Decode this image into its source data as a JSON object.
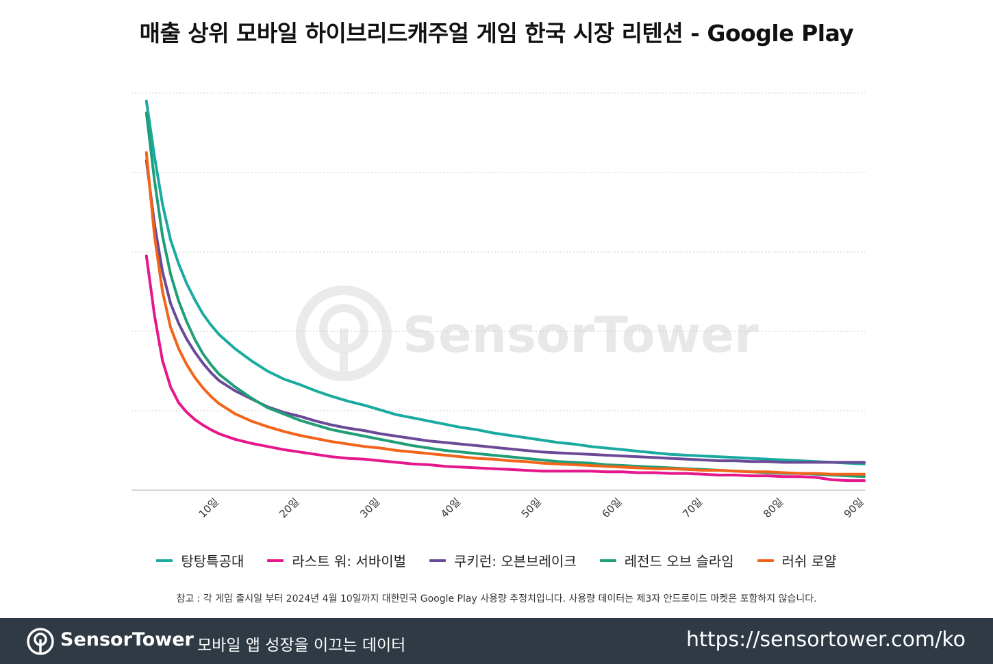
{
  "chart_data": {
    "type": "line",
    "title": "매출 상위 모바일 하이브리드캐주얼 게임 한국 시장 리텐션 - Google Play",
    "xlabel": "",
    "ylabel": "",
    "x_tick_labels": [
      "10일",
      "20일",
      "30일",
      "40일",
      "50일",
      "60일",
      "70일",
      "80일",
      "90일"
    ],
    "x_ticks": [
      10,
      20,
      30,
      40,
      50,
      60,
      70,
      80,
      90
    ],
    "xlim": [
      0,
      90
    ],
    "ylim": [
      0,
      5
    ],
    "grid": "horizontal-dotted",
    "legend_position": "bottom",
    "series": [
      {
        "name": "탕탕특공대",
        "color": "#19aaa0",
        "x": [
          1,
          2,
          3,
          4,
          5,
          6,
          7,
          8,
          9,
          10,
          12,
          14,
          16,
          18,
          20,
          22,
          24,
          26,
          28,
          30,
          32,
          34,
          36,
          38,
          40,
          42,
          44,
          46,
          48,
          50,
          52,
          54,
          56,
          58,
          60,
          62,
          64,
          66,
          68,
          70,
          72,
          74,
          76,
          78,
          80,
          82,
          84,
          86,
          88,
          90
        ],
        "y": [
          4.9,
          4.2,
          3.6,
          3.15,
          2.85,
          2.6,
          2.4,
          2.22,
          2.08,
          1.96,
          1.78,
          1.63,
          1.5,
          1.4,
          1.33,
          1.25,
          1.18,
          1.12,
          1.07,
          1.01,
          0.95,
          0.91,
          0.87,
          0.83,
          0.79,
          0.76,
          0.72,
          0.69,
          0.66,
          0.63,
          0.6,
          0.58,
          0.55,
          0.53,
          0.51,
          0.49,
          0.47,
          0.45,
          0.44,
          0.43,
          0.42,
          0.41,
          0.4,
          0.39,
          0.38,
          0.37,
          0.36,
          0.35,
          0.34,
          0.33
        ]
      },
      {
        "name": "라스트 워: 서바이벌",
        "color": "#e6168c",
        "x": [
          1,
          2,
          3,
          4,
          5,
          6,
          7,
          8,
          9,
          10,
          12,
          14,
          16,
          18,
          20,
          22,
          24,
          26,
          28,
          30,
          32,
          34,
          36,
          38,
          40,
          42,
          44,
          46,
          48,
          50,
          52,
          54,
          56,
          58,
          60,
          62,
          64,
          66,
          68,
          70,
          72,
          74,
          76,
          78,
          80,
          82,
          84,
          86,
          88,
          90
        ],
        "y": [
          2.95,
          2.2,
          1.63,
          1.3,
          1.1,
          0.98,
          0.89,
          0.82,
          0.76,
          0.71,
          0.64,
          0.59,
          0.55,
          0.51,
          0.48,
          0.45,
          0.42,
          0.4,
          0.39,
          0.37,
          0.35,
          0.33,
          0.32,
          0.3,
          0.29,
          0.28,
          0.27,
          0.26,
          0.25,
          0.24,
          0.24,
          0.24,
          0.24,
          0.23,
          0.23,
          0.22,
          0.22,
          0.21,
          0.21,
          0.2,
          0.19,
          0.19,
          0.18,
          0.18,
          0.17,
          0.17,
          0.16,
          0.13,
          0.12,
          0.12
        ]
      },
      {
        "name": "쿠키런: 오븐브레이크",
        "color": "#6a4a96",
        "x": [
          1,
          2,
          3,
          4,
          5,
          6,
          7,
          8,
          9,
          10,
          12,
          14,
          16,
          18,
          20,
          22,
          24,
          26,
          28,
          30,
          32,
          34,
          36,
          38,
          40,
          42,
          44,
          46,
          48,
          50,
          52,
          54,
          56,
          58,
          60,
          62,
          64,
          66,
          68,
          70,
          72,
          74,
          76,
          78,
          80,
          82,
          84,
          86,
          88,
          90
        ],
        "y": [
          4.15,
          3.35,
          2.75,
          2.35,
          2.1,
          1.9,
          1.74,
          1.6,
          1.48,
          1.38,
          1.25,
          1.15,
          1.05,
          0.98,
          0.93,
          0.87,
          0.82,
          0.78,
          0.75,
          0.71,
          0.68,
          0.65,
          0.62,
          0.6,
          0.58,
          0.56,
          0.54,
          0.52,
          0.5,
          0.48,
          0.47,
          0.46,
          0.45,
          0.44,
          0.43,
          0.42,
          0.41,
          0.4,
          0.39,
          0.38,
          0.37,
          0.37,
          0.36,
          0.36,
          0.35,
          0.35,
          0.35,
          0.35,
          0.35,
          0.35
        ]
      },
      {
        "name": "레전드 오브 슬라임",
        "color": "#1f9e78",
        "x": [
          1,
          2,
          3,
          4,
          5,
          6,
          7,
          8,
          9,
          10,
          12,
          14,
          16,
          18,
          20,
          22,
          24,
          26,
          28,
          30,
          32,
          34,
          36,
          38,
          40,
          42,
          44,
          46,
          48,
          50,
          52,
          54,
          56,
          58,
          60,
          62,
          64,
          66,
          68,
          70,
          72,
          74,
          76,
          78,
          80,
          82,
          84,
          86,
          88,
          90
        ],
        "y": [
          4.75,
          3.9,
          3.2,
          2.72,
          2.38,
          2.12,
          1.9,
          1.72,
          1.58,
          1.46,
          1.3,
          1.16,
          1.04,
          0.96,
          0.88,
          0.82,
          0.76,
          0.72,
          0.68,
          0.64,
          0.6,
          0.56,
          0.53,
          0.5,
          0.48,
          0.46,
          0.44,
          0.42,
          0.4,
          0.38,
          0.36,
          0.35,
          0.34,
          0.32,
          0.31,
          0.3,
          0.29,
          0.28,
          0.27,
          0.26,
          0.25,
          0.24,
          0.23,
          0.22,
          0.21,
          0.21,
          0.2,
          0.19,
          0.18,
          0.17
        ]
      },
      {
        "name": "러쉬 로얄",
        "color": "#f26419",
        "x": [
          1,
          2,
          3,
          4,
          5,
          6,
          7,
          8,
          9,
          10,
          12,
          14,
          16,
          18,
          20,
          22,
          24,
          26,
          28,
          30,
          32,
          34,
          36,
          38,
          40,
          42,
          44,
          46,
          48,
          50,
          52,
          54,
          56,
          58,
          60,
          62,
          64,
          66,
          68,
          70,
          72,
          74,
          76,
          78,
          80,
          82,
          84,
          86,
          88,
          90
        ],
        "y": [
          4.25,
          3.2,
          2.5,
          2.05,
          1.78,
          1.58,
          1.42,
          1.29,
          1.18,
          1.09,
          0.96,
          0.87,
          0.8,
          0.74,
          0.69,
          0.65,
          0.61,
          0.58,
          0.55,
          0.53,
          0.5,
          0.48,
          0.46,
          0.44,
          0.42,
          0.4,
          0.39,
          0.37,
          0.36,
          0.34,
          0.33,
          0.32,
          0.31,
          0.3,
          0.29,
          0.28,
          0.27,
          0.27,
          0.26,
          0.25,
          0.25,
          0.24,
          0.23,
          0.23,
          0.22,
          0.21,
          0.21,
          0.2,
          0.2,
          0.2
        ]
      }
    ]
  },
  "watermark": {
    "text": "SensorTower"
  },
  "footnote": "참고 : 각 게임 출시일 부터 2024년 4월 10일까지 대한민국 Google Play 사용량 추정치입니다. 사용량 데이터는 제3자 안드로이드 마켓은 포함하지 않습니다.",
  "footer": {
    "brand": "SensorTower",
    "tagline": "모바일 앱 성장을 이끄는 데이터",
    "url": "https://sensortower.com/ko",
    "background": "#2f3a45"
  }
}
